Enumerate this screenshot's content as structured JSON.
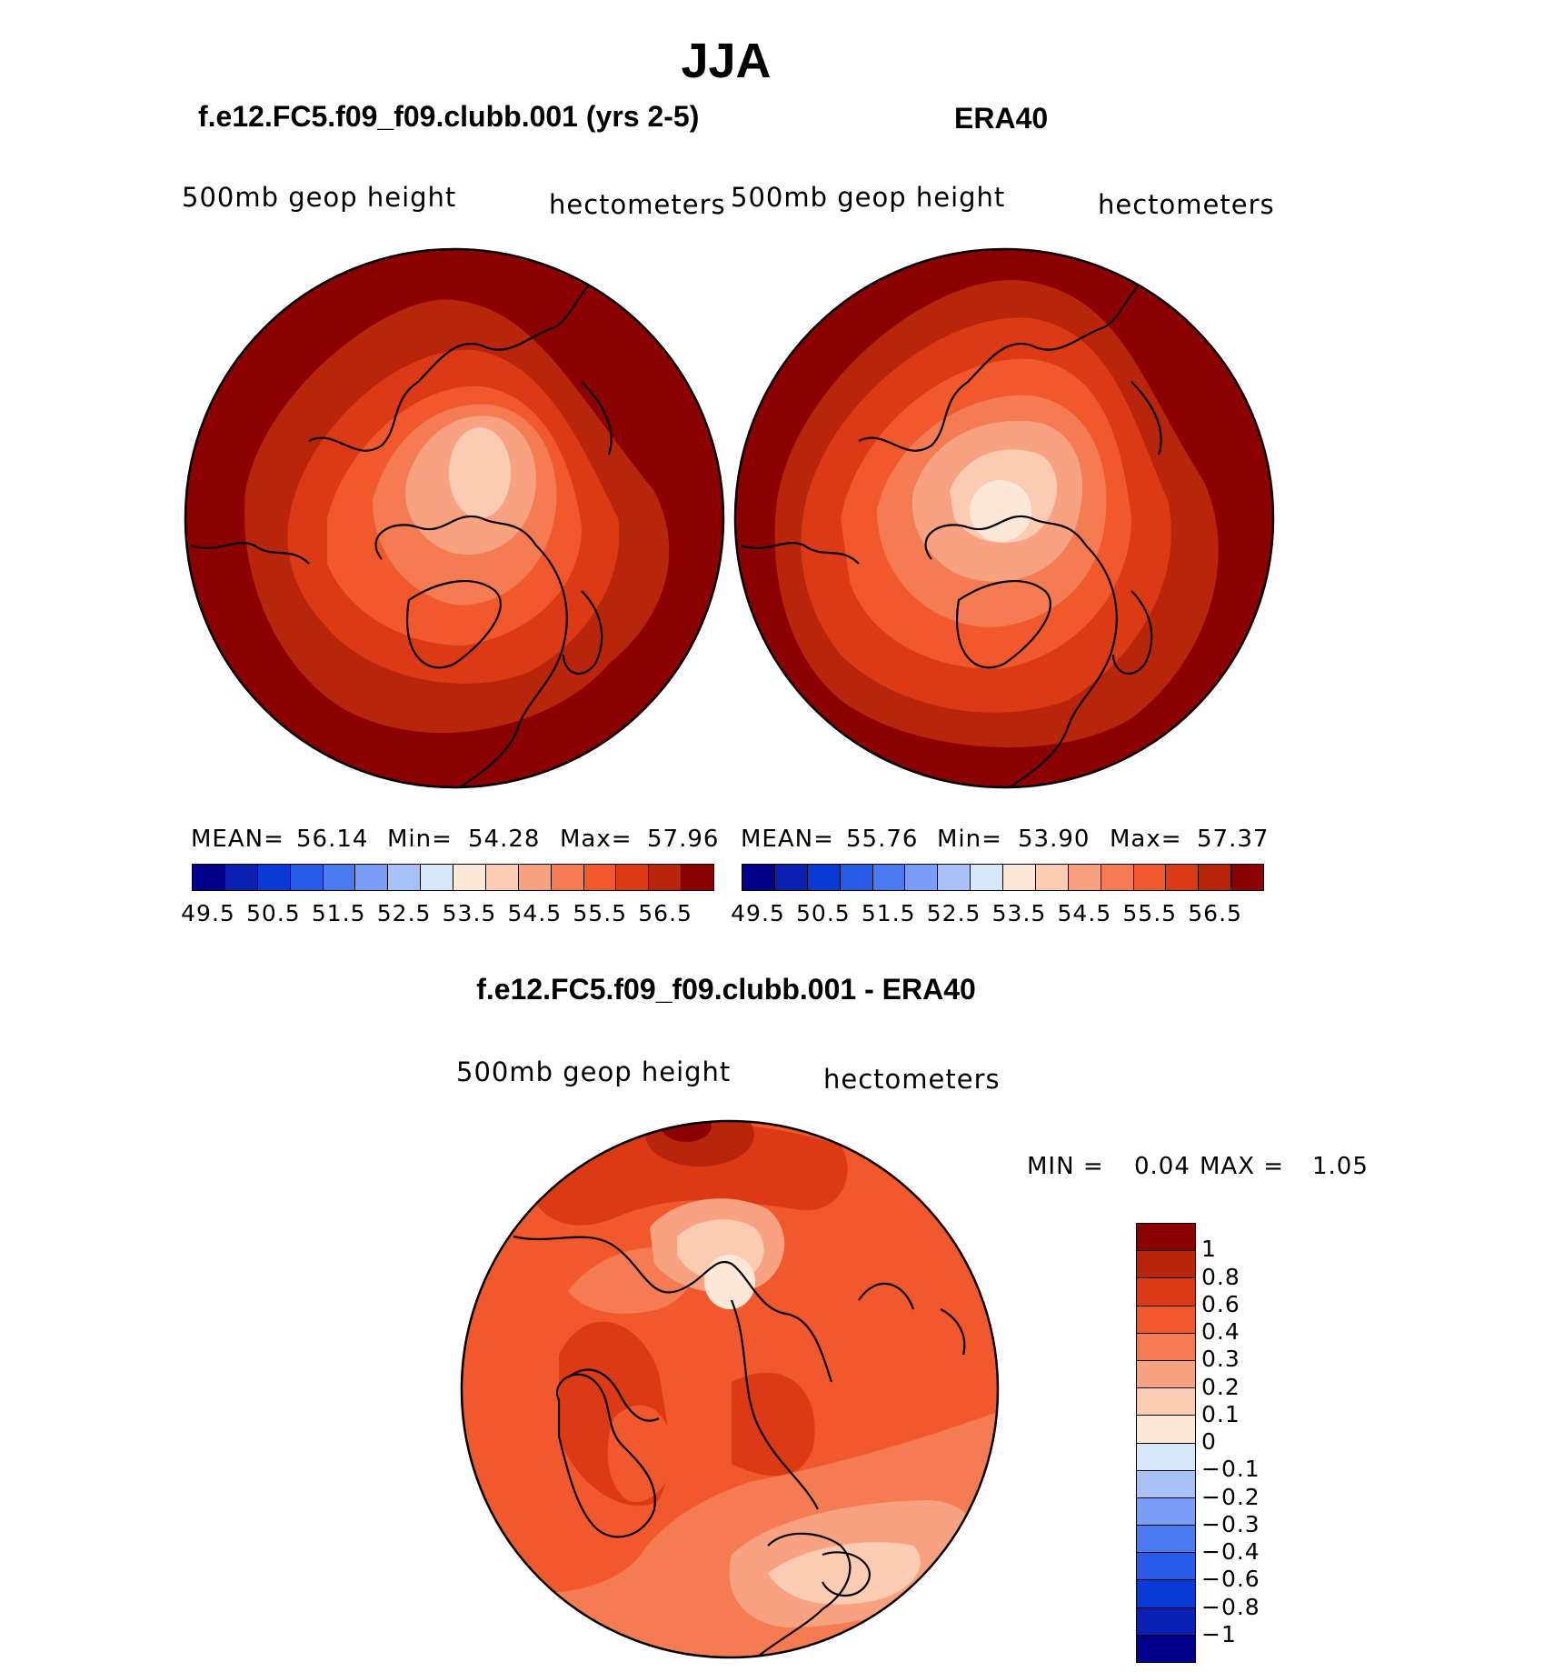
{
  "header": {
    "title": "JJA"
  },
  "panels": {
    "left": {
      "title": "f.e12.FC5.f09_f09.clubb.001 (yrs 2-5)",
      "variable": "500mb  geop  height",
      "units": "hectometers",
      "stats": {
        "mean_label": "MEAN=",
        "mean": "56.14",
        "min_label": "Min=",
        "min": "54.28",
        "max_label": "Max=",
        "max": "57.96"
      }
    },
    "right": {
      "title": "ERA40",
      "variable": "500mb  geop  height",
      "units": "hectometers",
      "stats": {
        "mean_label": "MEAN=",
        "mean": "55.76",
        "min_label": "Min=",
        "min": "53.90",
        "max_label": "Max=",
        "max": "57.37"
      }
    },
    "diff": {
      "title": "f.e12.FC5.f09_f09.clubb.001 - ERA40",
      "variable": "500mb  geop  height",
      "units": "hectometers",
      "stats": {
        "min_label": "MIN =",
        "min": "0.04",
        "max_label": "MAX =",
        "max": "1.05"
      }
    }
  },
  "colorbar_abs": {
    "colors": [
      "#00008b",
      "#0b1fb3",
      "#0a3ad6",
      "#2a5ae8",
      "#4a79f0",
      "#7a9ef5",
      "#a8c2f8",
      "#d6e6fb",
      "#fde8d8",
      "#fbcbb2",
      "#f8a282",
      "#f57c52",
      "#f1592d",
      "#dc3a14",
      "#b8250b",
      "#8b0000"
    ],
    "ticks": [
      "49.5",
      "50.5",
      "51.5",
      "52.5",
      "53.5",
      "54.5",
      "55.5",
      "56.5"
    ]
  },
  "colorbar_diff": {
    "colors": [
      "#8b0000",
      "#b8250b",
      "#dc3a14",
      "#f1592d",
      "#f57c52",
      "#f8a282",
      "#fbcbb2",
      "#fde8d8",
      "#d6e6fb",
      "#a8c2f8",
      "#7a9ef5",
      "#4a79f0",
      "#2a5ae8",
      "#0a3ad6",
      "#0b1fb3",
      "#00008b"
    ],
    "ticks": [
      "1",
      "0.8",
      "0.6",
      "0.4",
      "0.3",
      "0.2",
      "0.1",
      "0",
      "−0.1",
      "−0.2",
      "−0.3",
      "−0.4",
      "−0.6",
      "−0.8",
      "−1"
    ]
  }
}
